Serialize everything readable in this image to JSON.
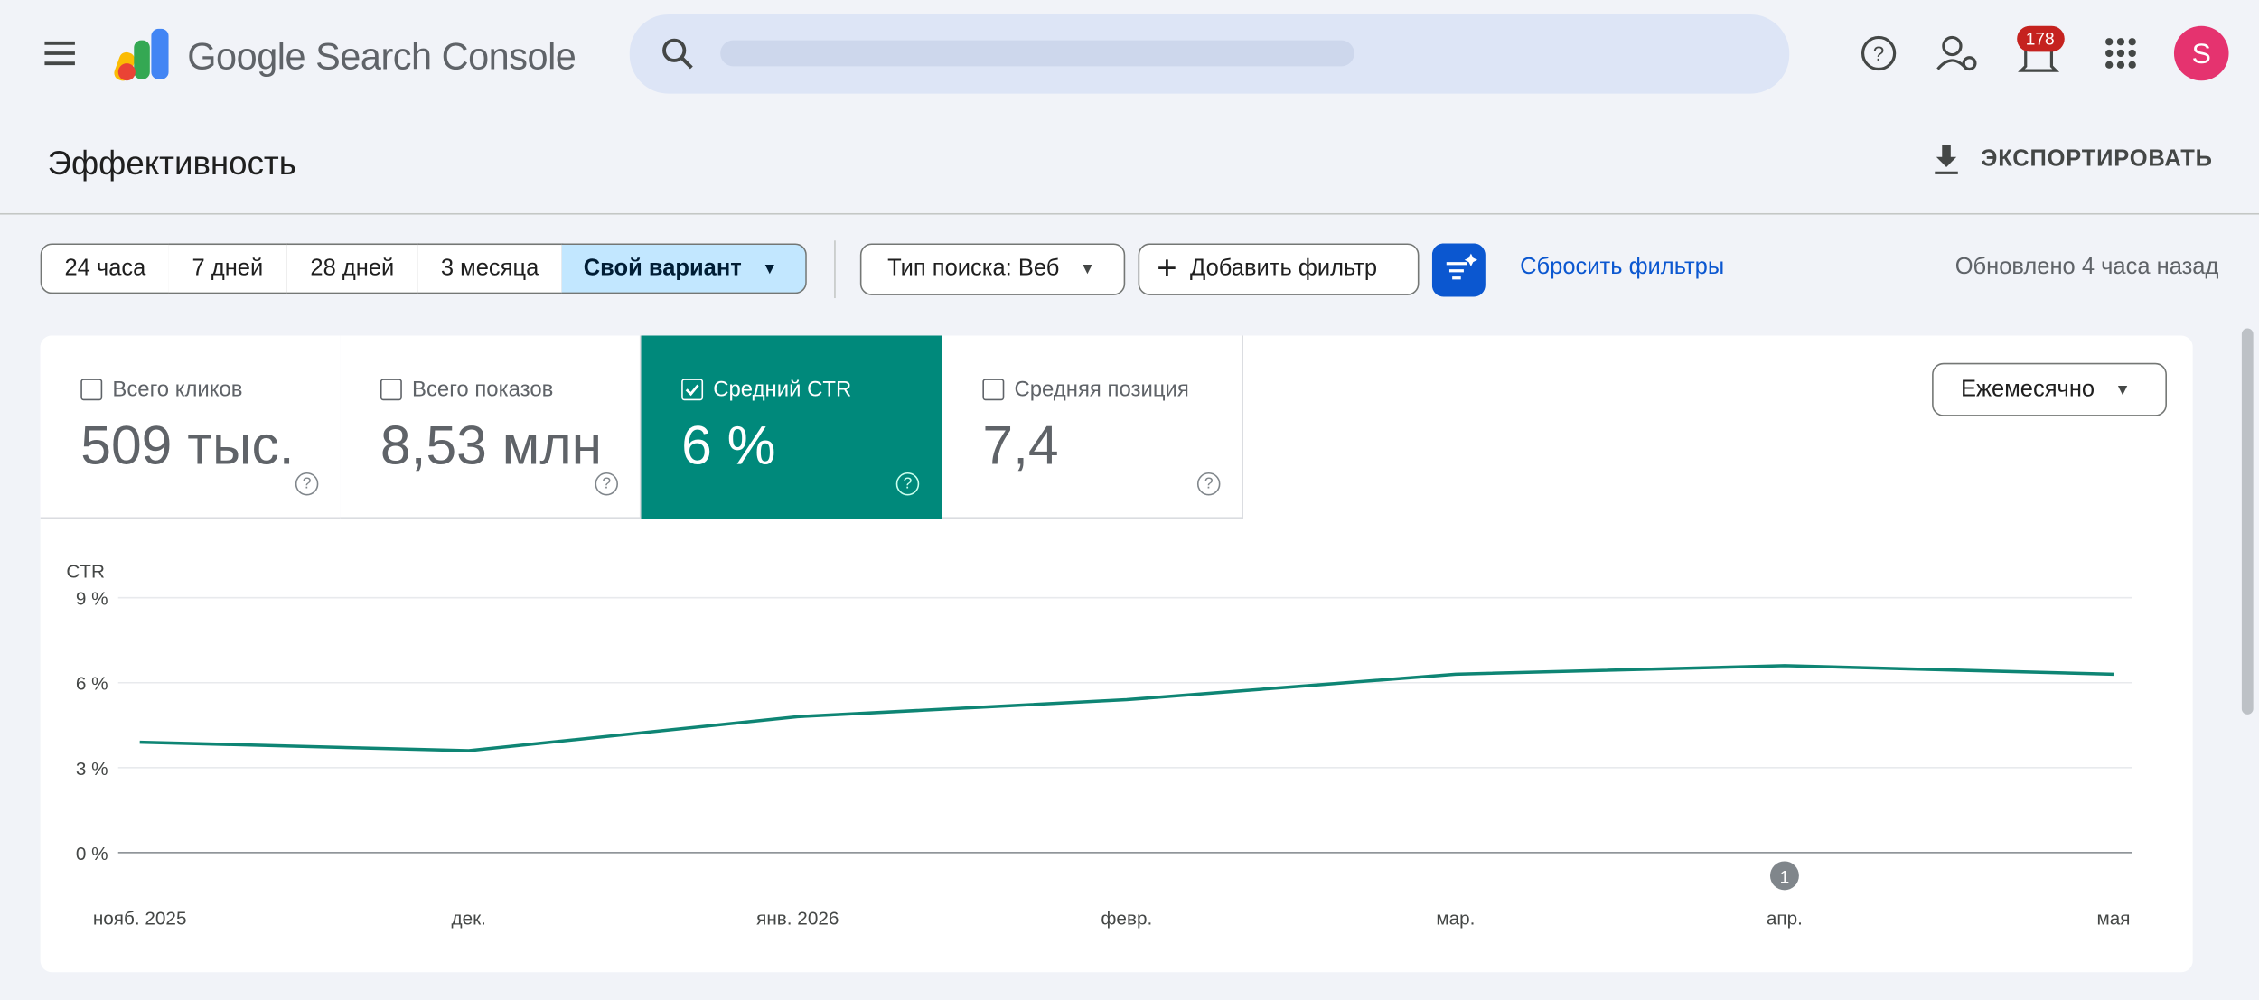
{
  "header": {
    "product": "Google Search Console",
    "notifications": "178",
    "avatar": "S"
  },
  "page": {
    "title": "Эффективность",
    "export": "ЭКСПОРТИРОВАТЬ"
  },
  "toolbar": {
    "date_ranges": [
      "24 часа",
      "7 дней",
      "28 дней",
      "3 месяца",
      "Свой вариант"
    ],
    "search_type": "Тип поиска: Веб",
    "add_filter": "Добавить фильтр",
    "reset": "Сбросить фильтры",
    "updated": "Обновлено 4 часа назад"
  },
  "metrics": [
    {
      "label": "Всего кликов",
      "value": "509 тыс."
    },
    {
      "label": "Всего показов",
      "value": "8,53 млн"
    },
    {
      "label": "Средний CTR",
      "value": "6 %"
    },
    {
      "label": "Средняя позиция",
      "value": "7,4"
    }
  ],
  "granularity": "Ежемесячно",
  "chart_data": {
    "type": "line",
    "y_label": "CTR",
    "categories": [
      "нояб. 2025",
      "дек.",
      "янв. 2026",
      "февр.",
      "мар.",
      "апр.",
      "мая"
    ],
    "values": [
      3.9,
      3.6,
      4.8,
      5.4,
      6.3,
      6.6,
      6.3
    ],
    "color": "#0e8574",
    "ylim": [
      0,
      9
    ],
    "yticks": [
      {
        "value": 0,
        "label": "0 %"
      },
      {
        "value": 3,
        "label": "3 %"
      },
      {
        "value": 6,
        "label": "6 %"
      },
      {
        "value": 9,
        "label": "9 %"
      }
    ],
    "grid": true,
    "annotation": "1"
  }
}
